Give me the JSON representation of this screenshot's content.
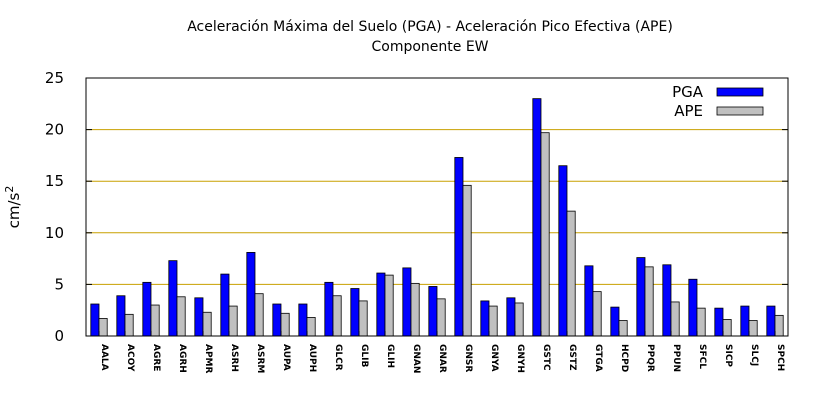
{
  "chart_data": {
    "type": "bar",
    "title": "Aceleración Máxima del Suelo (PGA) -  Aceleración Pico Efectiva (APE)",
    "subtitle": "Componente EW",
    "xlabel": "",
    "ylabel": "cm/s",
    "ylabel_superscript": "2",
    "ylim": [
      0,
      25
    ],
    "yticks": [
      "0",
      "5",
      "10",
      "15",
      "20",
      "25"
    ],
    "grid": "horizontal",
    "legend_position": "top-right",
    "categories": [
      "AALA",
      "ACOY",
      "AGRE",
      "AGRH",
      "APMR",
      "ASRH",
      "ASRM",
      "AUPA",
      "AUPH",
      "GLCR",
      "GLIB",
      "GLIH",
      "GNAN",
      "GNAR",
      "GNSR",
      "GNYA",
      "GNYH",
      "GSTC",
      "GSTZ",
      "GTGA",
      "HCPD",
      "PPQR",
      "PPUN",
      "SFCL",
      "SICP",
      "SLCJ",
      "SPCH"
    ],
    "series": [
      {
        "name": "PGA",
        "color": "#0000ff",
        "values": [
          3.1,
          3.9,
          5.2,
          7.3,
          3.7,
          6.0,
          8.1,
          3.1,
          3.1,
          5.2,
          4.6,
          6.1,
          6.6,
          4.8,
          17.3,
          3.4,
          3.7,
          23.0,
          16.5,
          6.8,
          2.8,
          7.6,
          6.9,
          5.5,
          2.7,
          2.9,
          2.9
        ]
      },
      {
        "name": "APE",
        "color": "#c0c0c0",
        "values": [
          1.7,
          2.1,
          3.0,
          3.8,
          2.3,
          2.9,
          4.1,
          2.2,
          1.8,
          3.9,
          3.4,
          5.9,
          5.1,
          3.6,
          14.6,
          2.9,
          3.2,
          19.7,
          12.1,
          4.3,
          1.5,
          6.7,
          3.3,
          2.7,
          1.6,
          1.5,
          2.0
        ]
      }
    ],
    "colors": {
      "grid": "#c8a000",
      "axis": "#000000",
      "bar_stroke": "#000000"
    }
  }
}
